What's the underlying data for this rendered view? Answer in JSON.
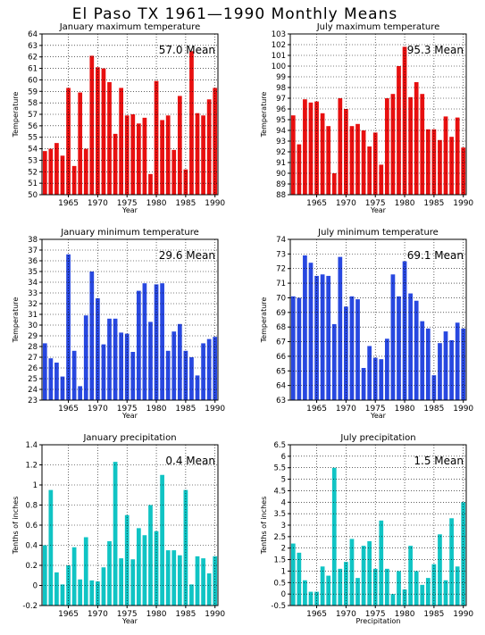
{
  "page_title": "El Paso TX   1961—1990 Monthly Means",
  "colors": {
    "temperature_max": "#e81010",
    "temperature_min": "#2848e0",
    "precipitation": "#10c4c4"
  },
  "chart_data": [
    {
      "type": "bar",
      "title": "January maximum temperature",
      "xlabel": "Year",
      "ylabel": "Temperature",
      "mean_label": "57.0 Mean",
      "color": "#e81010",
      "ylim": [
        50,
        64
      ],
      "yticks": [
        50,
        51,
        52,
        53,
        54,
        55,
        56,
        57,
        58,
        59,
        60,
        61,
        62,
        63,
        64
      ],
      "xlim": [
        1961,
        1990
      ],
      "xticks": [
        1965,
        1970,
        1975,
        1980,
        1985,
        1990
      ],
      "grid": true,
      "x": [
        1961,
        1962,
        1963,
        1964,
        1965,
        1966,
        1967,
        1968,
        1969,
        1970,
        1971,
        1972,
        1973,
        1974,
        1975,
        1976,
        1977,
        1978,
        1979,
        1980,
        1981,
        1982,
        1983,
        1984,
        1985,
        1986,
        1987,
        1988,
        1989,
        1990
      ],
      "values": [
        53.8,
        54.0,
        54.5,
        53.4,
        59.3,
        52.5,
        58.9,
        54.0,
        62.1,
        61.1,
        61.0,
        59.8,
        55.3,
        59.3,
        56.9,
        57.0,
        56.2,
        56.7,
        51.8,
        59.9,
        56.5,
        56.9,
        53.9,
        58.6,
        52.2,
        62.5,
        57.1,
        56.9,
        58.3,
        59.3
      ]
    },
    {
      "type": "bar",
      "title": "July maximum temperature",
      "xlabel": "Year",
      "ylabel": "Temperature",
      "mean_label": "95.3 Mean",
      "color": "#e81010",
      "ylim": [
        88,
        103
      ],
      "yticks": [
        88,
        89,
        90,
        91,
        92,
        93,
        94,
        95,
        96,
        97,
        98,
        99,
        100,
        101,
        102,
        103
      ],
      "xlim": [
        1961,
        1990
      ],
      "xticks": [
        1965,
        1970,
        1975,
        1980,
        1985,
        1990
      ],
      "grid": true,
      "x": [
        1961,
        1962,
        1963,
        1964,
        1965,
        1966,
        1967,
        1968,
        1969,
        1970,
        1971,
        1972,
        1973,
        1974,
        1975,
        1976,
        1977,
        1978,
        1979,
        1980,
        1981,
        1982,
        1983,
        1984,
        1985,
        1986,
        1987,
        1988,
        1989,
        1990
      ],
      "values": [
        95.4,
        92.7,
        96.9,
        96.6,
        96.7,
        95.6,
        94.4,
        90.0,
        97.0,
        96.0,
        94.4,
        94.6,
        94.0,
        92.5,
        93.8,
        90.8,
        97.0,
        97.4,
        100.0,
        101.8,
        97.1,
        98.5,
        97.4,
        94.1,
        94.1,
        93.1,
        95.3,
        93.4,
        95.2,
        92.4
      ]
    },
    {
      "type": "bar",
      "title": "January minimum temperature",
      "xlabel": "Year",
      "ylabel": "Temperature",
      "mean_label": "29.6 Mean",
      "color": "#2848e0",
      "ylim": [
        23,
        38
      ],
      "yticks": [
        23,
        24,
        25,
        26,
        27,
        28,
        29,
        30,
        31,
        32,
        33,
        34,
        35,
        36,
        37,
        38
      ],
      "xlim": [
        1961,
        1990
      ],
      "xticks": [
        1965,
        1970,
        1975,
        1980,
        1985,
        1990
      ],
      "grid": true,
      "x": [
        1961,
        1962,
        1963,
        1964,
        1965,
        1966,
        1967,
        1968,
        1969,
        1970,
        1971,
        1972,
        1973,
        1974,
        1975,
        1976,
        1977,
        1978,
        1979,
        1980,
        1981,
        1982,
        1983,
        1984,
        1985,
        1986,
        1987,
        1988,
        1989,
        1990
      ],
      "values": [
        28.3,
        26.9,
        26.5,
        25.2,
        36.6,
        27.6,
        24.3,
        30.9,
        35.0,
        32.5,
        28.2,
        30.6,
        30.6,
        29.3,
        29.2,
        27.5,
        33.2,
        33.9,
        30.3,
        33.8,
        33.9,
        27.6,
        29.4,
        30.1,
        27.6,
        27.0,
        25.3,
        28.3,
        28.7,
        28.9
      ]
    },
    {
      "type": "bar",
      "title": "July minimum temperature",
      "xlabel": "Year",
      "ylabel": "Temperature",
      "mean_label": "69.1 Mean",
      "color": "#2848e0",
      "ylim": [
        63,
        74
      ],
      "yticks": [
        63,
        64,
        65,
        66,
        67,
        68,
        69,
        70,
        71,
        72,
        73,
        74
      ],
      "xlim": [
        1961,
        1990
      ],
      "xticks": [
        1965,
        1970,
        1975,
        1980,
        1985,
        1990
      ],
      "grid": true,
      "x": [
        1961,
        1962,
        1963,
        1964,
        1965,
        1966,
        1967,
        1968,
        1969,
        1970,
        1971,
        1972,
        1973,
        1974,
        1975,
        1976,
        1977,
        1978,
        1979,
        1980,
        1981,
        1982,
        1983,
        1984,
        1985,
        1986,
        1987,
        1988,
        1989,
        1990
      ],
      "values": [
        70.1,
        70.0,
        72.9,
        72.4,
        71.5,
        71.6,
        71.5,
        68.2,
        72.8,
        69.4,
        70.1,
        69.9,
        65.2,
        66.7,
        65.9,
        65.8,
        67.2,
        71.6,
        70.1,
        72.5,
        70.3,
        69.8,
        68.4,
        67.9,
        64.7,
        66.9,
        67.7,
        67.1,
        68.3,
        67.9
      ]
    },
    {
      "type": "bar",
      "title": "January precipitation",
      "xlabel": "Year",
      "ylabel": "Tenths of inches",
      "mean_label": "0.4 Mean",
      "color": "#10c4c4",
      "ylim": [
        -0.2,
        1.4
      ],
      "yticks": [
        -0.2,
        0,
        0.2,
        0.4,
        0.6,
        0.8,
        1,
        1.2,
        1.4
      ],
      "xlim": [
        1961,
        1990
      ],
      "xticks": [
        1965,
        1970,
        1975,
        1980,
        1985,
        1990
      ],
      "grid": true,
      "x": [
        1961,
        1962,
        1963,
        1964,
        1965,
        1966,
        1967,
        1968,
        1969,
        1970,
        1971,
        1972,
        1973,
        1974,
        1975,
        1976,
        1977,
        1978,
        1979,
        1980,
        1981,
        1982,
        1983,
        1984,
        1985,
        1986,
        1987,
        1988,
        1989,
        1990
      ],
      "values": [
        0.4,
        0.95,
        0.13,
        0.01,
        0.2,
        0.38,
        0.06,
        0.48,
        0.05,
        0.04,
        0.18,
        0.44,
        1.23,
        0.27,
        0.7,
        0.26,
        0.57,
        0.5,
        0.8,
        0.54,
        1.1,
        0.35,
        0.35,
        0.3,
        0.95,
        0.01,
        0.29,
        0.27,
        0.12,
        0.29
      ]
    },
    {
      "type": "bar",
      "title": "July precipitation",
      "xlabel": "Precipitation",
      "ylabel": "Tenths of inches",
      "mean_label": "1.5 Mean",
      "color": "#10c4c4",
      "ylim": [
        -0.5,
        6.5
      ],
      "yticks": [
        -0.5,
        0,
        0.5,
        1,
        1.5,
        2,
        2.5,
        3,
        3.5,
        4,
        4.5,
        5,
        5.5,
        6,
        6.5
      ],
      "xlim": [
        1961,
        1990
      ],
      "xticks": [
        1965,
        1970,
        1975,
        1980,
        1985,
        1990
      ],
      "grid": true,
      "x": [
        1961,
        1962,
        1963,
        1964,
        1965,
        1966,
        1967,
        1968,
        1969,
        1970,
        1971,
        1972,
        1973,
        1974,
        1975,
        1976,
        1977,
        1978,
        1979,
        1980,
        1981,
        1982,
        1983,
        1984,
        1985,
        1986,
        1987,
        1988,
        1989,
        1990
      ],
      "values": [
        2.2,
        1.8,
        0.6,
        0.1,
        0.1,
        1.2,
        0.8,
        5.5,
        1.1,
        1.4,
        2.4,
        0.7,
        2.1,
        2.3,
        1.1,
        3.2,
        1.1,
        0.0,
        1.0,
        0.2,
        2.1,
        1.0,
        0.4,
        0.7,
        1.3,
        2.6,
        0.6,
        3.3,
        1.2,
        4.0
      ]
    }
  ]
}
